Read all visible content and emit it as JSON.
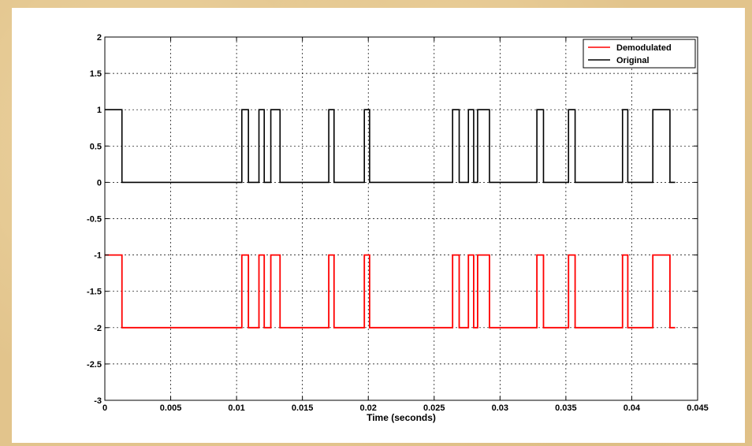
{
  "chart_data": {
    "type": "line",
    "title": "",
    "xlabel": "Time (seconds)",
    "ylabel": "",
    "xlim": [
      0,
      0.045
    ],
    "ylim": [
      -3,
      2
    ],
    "xticks": [
      0,
      0.005,
      0.01,
      0.015,
      0.02,
      0.025,
      0.03,
      0.035,
      0.04,
      0.045
    ],
    "xtick_labels": [
      "0",
      "0.005",
      "0.01",
      "0.015",
      "0.02",
      "0.025",
      "0.03",
      "0.035",
      "0.04",
      "0.045"
    ],
    "yticks": [
      -3,
      -2.5,
      -2,
      -1.5,
      -1,
      -0.5,
      0,
      0.5,
      1,
      1.5,
      2
    ],
    "ytick_labels": [
      "-3",
      "-2.5",
      "-2",
      "-1.5",
      "-1",
      "-0.5",
      "0",
      "0.5",
      "1",
      "1.5",
      "2"
    ],
    "grid": true,
    "legend_position": "top-right",
    "series": [
      {
        "name": "Demodulated",
        "color": "#ff0000",
        "low": -2,
        "high": -1,
        "x_start": 0,
        "x_end": 0.0433,
        "high_intervals": [
          [
            0,
            0.0013
          ],
          [
            0.0104,
            0.0109
          ],
          [
            0.0117,
            0.0121
          ],
          [
            0.0126,
            0.0133
          ],
          [
            0.017,
            0.0174
          ],
          [
            0.0197,
            0.0201
          ],
          [
            0.0264,
            0.0269
          ],
          [
            0.0276,
            0.028
          ],
          [
            0.0283,
            0.0292
          ],
          [
            0.0328,
            0.0333
          ],
          [
            0.0352,
            0.0357
          ],
          [
            0.0393,
            0.0397
          ],
          [
            0.0416,
            0.0429
          ]
        ]
      },
      {
        "name": "Original",
        "color": "#000000",
        "low": 0,
        "high": 1,
        "x_start": 0,
        "x_end": 0.0433,
        "high_intervals": [
          [
            0,
            0.0013
          ],
          [
            0.0104,
            0.0109
          ],
          [
            0.0117,
            0.0121
          ],
          [
            0.0126,
            0.0133
          ],
          [
            0.017,
            0.0174
          ],
          [
            0.0197,
            0.0201
          ],
          [
            0.0264,
            0.0269
          ],
          [
            0.0276,
            0.028
          ],
          [
            0.0283,
            0.0292
          ],
          [
            0.0328,
            0.0333
          ],
          [
            0.0352,
            0.0357
          ],
          [
            0.0393,
            0.0397
          ],
          [
            0.0416,
            0.0429
          ]
        ]
      }
    ]
  }
}
